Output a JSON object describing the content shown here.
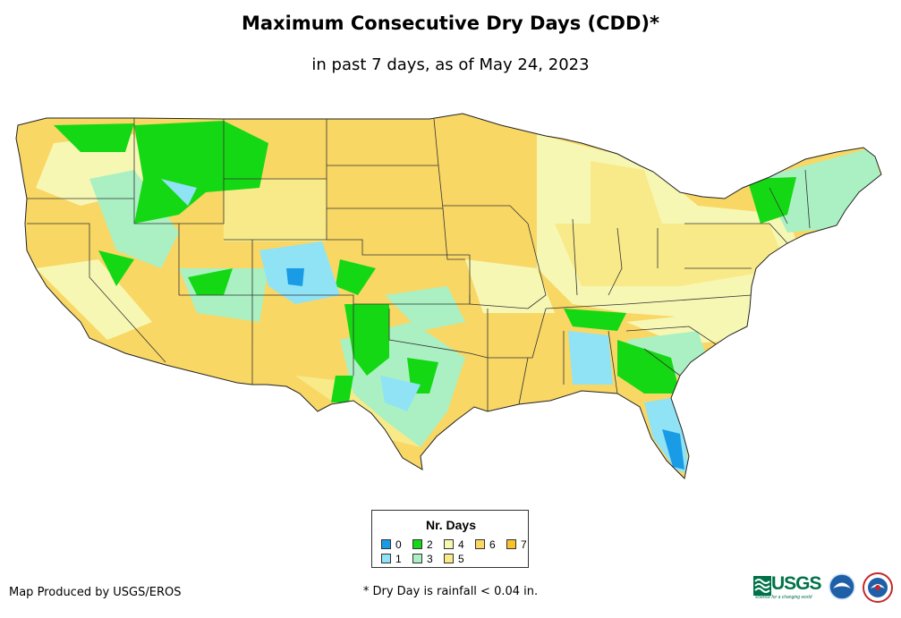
{
  "title": "Maximum Consecutive Dry Days (CDD)*",
  "subtitle": "in past 7 days, as of May 24, 2023",
  "legend": {
    "title": "Nr. Days",
    "items": [
      {
        "label": "0",
        "color": "#1a9be6"
      },
      {
        "label": "1",
        "color": "#8fe3f5"
      },
      {
        "label": "2",
        "color": "#14d814"
      },
      {
        "label": "3",
        "color": "#aaf0c3"
      },
      {
        "label": "4",
        "color": "#f7f7b4"
      },
      {
        "label": "5",
        "color": "#f8ea89"
      },
      {
        "label": "6",
        "color": "#f8d765"
      },
      {
        "label": "7",
        "color": "#f8c32a"
      }
    ]
  },
  "credit": "Map Produced by USGS/EROS",
  "footnote": "* Dry Day is rainfall < 0.04 in.",
  "logos": {
    "usgs_text": "USGS",
    "usgs_tagline": "science for a changing world",
    "noaa": "noaa-logo",
    "nws": "nws-logo"
  }
}
